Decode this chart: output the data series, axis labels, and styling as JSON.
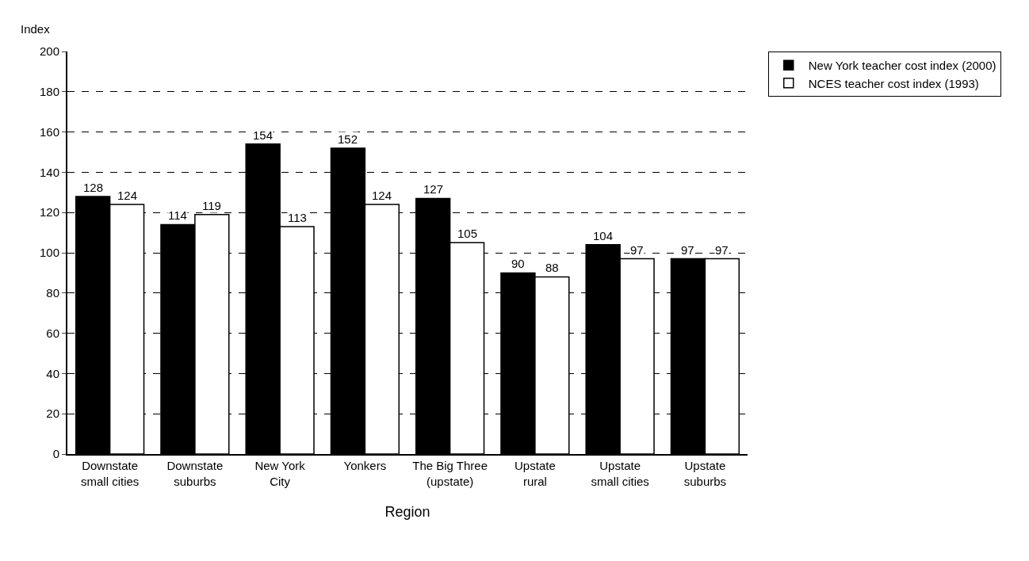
{
  "chart_data": {
    "type": "bar",
    "xlabel": "Region",
    "ylabel": "Index",
    "categories": [
      "Downstate\nsmall cities",
      "Downstate\nsuburbs",
      "New York\nCity",
      "Yonkers",
      "The Big Three\n(upstate)",
      "Upstate\nrural",
      "Upstate\nsmall cities",
      "Upstate\nsuburbs"
    ],
    "series": [
      {
        "name": "New York teacher cost index (2000)",
        "color": "#000000",
        "values": [
          128,
          114,
          154,
          152,
          127,
          90,
          104,
          97
        ]
      },
      {
        "name": "NCES teacher cost index (1993)",
        "color": "#ffffff",
        "values": [
          124,
          119,
          113,
          124,
          105,
          88,
          97,
          97
        ]
      }
    ],
    "ylim": [
      0,
      200
    ],
    "yticks": [
      0,
      20,
      40,
      60,
      80,
      100,
      120,
      140,
      160,
      180,
      200
    ],
    "grid": "y",
    "legend": "top right",
    "data_labels": true
  }
}
